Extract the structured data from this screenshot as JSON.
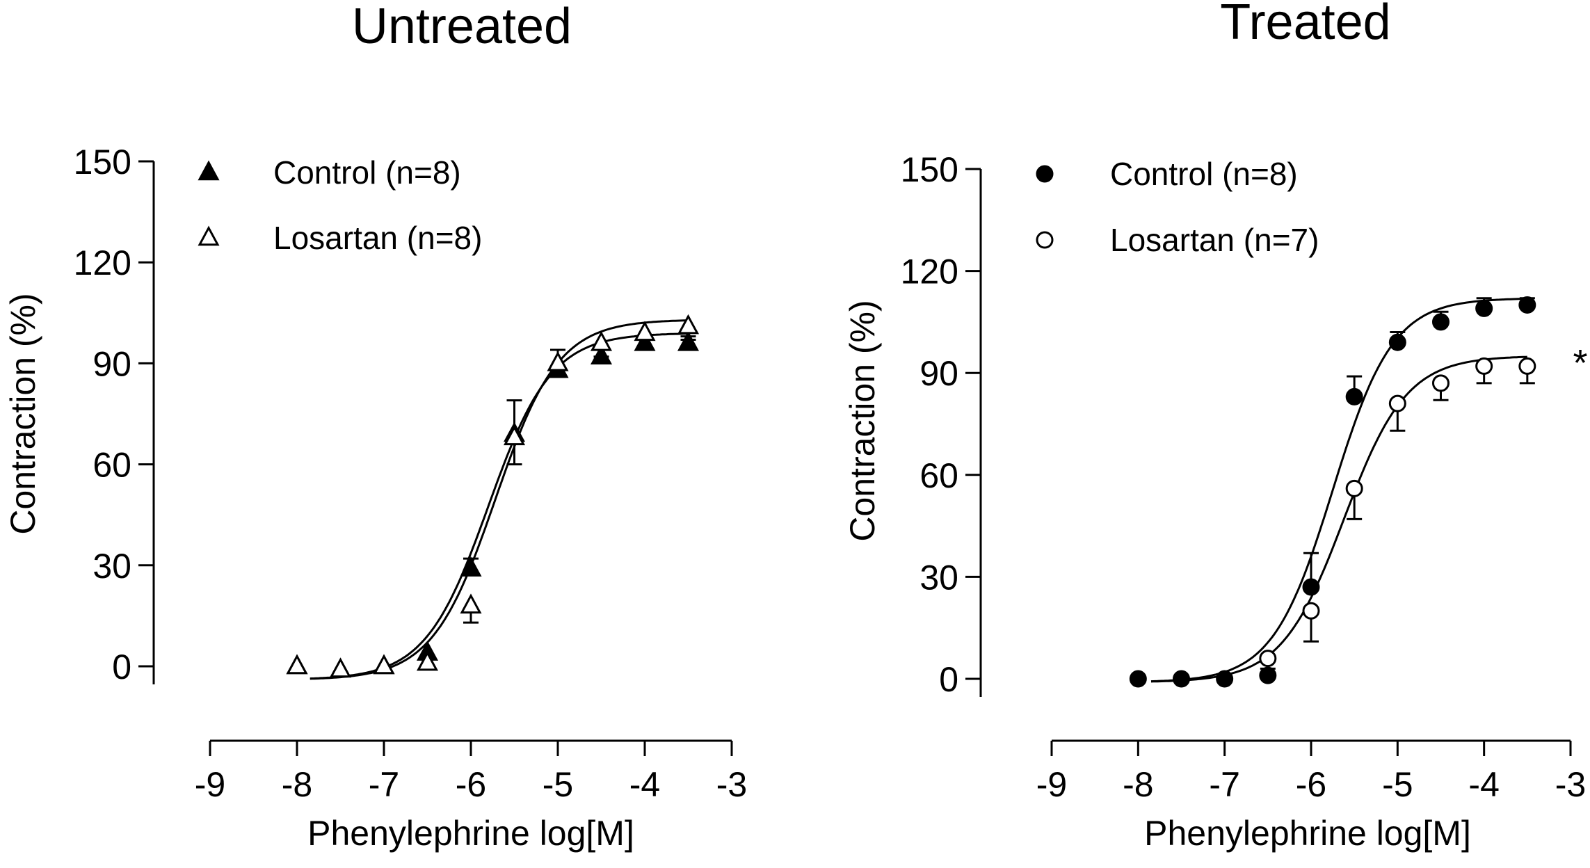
{
  "chart_data": [
    {
      "type": "scatter",
      "title": "Untreated",
      "xlabel": "Phenylephrine log[M]",
      "ylabel": "Contraction (%)",
      "xlim": [
        -9,
        -3
      ],
      "ylim": [
        0,
        150
      ],
      "xticks": [
        "-9",
        "-8",
        "-7",
        "-6",
        "-5",
        "-4",
        "-3"
      ],
      "yticks": [
        "0",
        "30",
        "60",
        "90",
        "120",
        "150"
      ],
      "legend_position": "top-left",
      "series": [
        {
          "name": "Control (n=8)",
          "marker": "triangle-filled",
          "x": [
            -8,
            -7.5,
            -7,
            -6.5,
            -6,
            -5.5,
            -5,
            -4.5,
            -4,
            -3.5
          ],
          "y": [
            0,
            -1,
            0,
            4,
            29,
            69,
            88,
            92,
            96,
            96
          ],
          "err": [
            0,
            0,
            0,
            0,
            3,
            10,
            6,
            2,
            2,
            2
          ],
          "fit": {
            "bottom": -4,
            "top": 99,
            "logEC50": -5.8,
            "hill": 1.2
          }
        },
        {
          "name": "Losartan (n=8)",
          "marker": "triangle-open",
          "x": [
            -8,
            -7.5,
            -7,
            -6.5,
            -6,
            -5.5,
            -5,
            -4.5,
            -4,
            -3.5
          ],
          "y": [
            0,
            -1,
            0,
            1,
            18,
            68,
            90,
            96,
            99,
            101
          ],
          "err": [
            0,
            0,
            0,
            0,
            5,
            8,
            4,
            4,
            4,
            4
          ],
          "fit": {
            "bottom": -4,
            "top": 103,
            "logEC50": -5.72,
            "hill": 1.2
          }
        }
      ]
    },
    {
      "type": "scatter",
      "title": "Treated",
      "xlabel": "Phenylephrine log[M]",
      "ylabel": "Contraction (%)",
      "xlim": [
        -9,
        -3
      ],
      "ylim": [
        0,
        150
      ],
      "xticks": [
        "-9",
        "-8",
        "-7",
        "-6",
        "-5",
        "-4",
        "-3"
      ],
      "yticks": [
        "0",
        "30",
        "60",
        "90",
        "120",
        "150"
      ],
      "legend_position": "top-left",
      "annotation": "*",
      "series": [
        {
          "name": "Control (n=8)",
          "marker": "circle-filled",
          "x": [
            -8,
            -7.5,
            -7,
            -6.5,
            -6,
            -5.5,
            -5,
            -4.5,
            -4,
            -3.5
          ],
          "y": [
            0,
            0,
            0,
            1,
            27,
            83,
            99,
            105,
            109,
            110
          ],
          "err": [
            0,
            0,
            0,
            0,
            10,
            6,
            3,
            3,
            3,
            2
          ],
          "fit": {
            "bottom": -1,
            "top": 112,
            "logEC50": -5.75,
            "hill": 1.25
          }
        },
        {
          "name": "Losartan (n=7)",
          "marker": "circle-open",
          "x": [
            -6.5,
            -6,
            -5.5,
            -5,
            -4.5,
            -4,
            -3.5
          ],
          "y": [
            6,
            20,
            56,
            81,
            87,
            92,
            92
          ],
          "err": [
            3,
            9,
            9,
            8,
            5,
            5,
            5
          ],
          "fit": {
            "bottom": -1,
            "top": 95,
            "logEC50": -5.62,
            "hill": 1.2
          }
        }
      ]
    }
  ]
}
